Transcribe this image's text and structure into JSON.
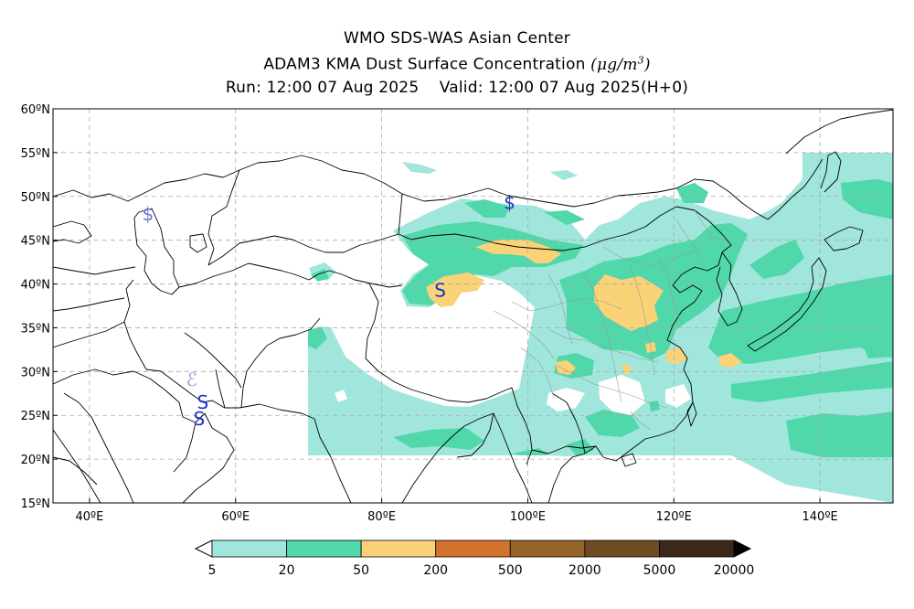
{
  "titles": {
    "line1": "WMO SDS-WAS Asian Center",
    "line2": "ADAM3 KMA Dust Surface Concentration",
    "unit_mu": "μ",
    "unit_g": "g/m",
    "unit_exp": "3",
    "line3": "Run: 12:00 07 Aug 2025    Valid: 12:00 07 Aug 2025(H+0)"
  },
  "map": {
    "lon_range": [
      35,
      150
    ],
    "lat_range": [
      15,
      60
    ],
    "lon_ticks": [
      {
        "value": 40,
        "label": "40ºE"
      },
      {
        "value": 60,
        "label": "60ºE"
      },
      {
        "value": 80,
        "label": "80ºE"
      },
      {
        "value": 100,
        "label": "100ºE"
      },
      {
        "value": 120,
        "label": "120ºE"
      },
      {
        "value": 140,
        "label": "140ºE"
      }
    ],
    "lat_ticks": [
      {
        "value": 60,
        "label": "60ºN"
      },
      {
        "value": 55,
        "label": "55ºN"
      },
      {
        "value": 50,
        "label": "50ºN"
      },
      {
        "value": 45,
        "label": "45ºN"
      },
      {
        "value": 40,
        "label": "40ºN"
      },
      {
        "value": 35,
        "label": "35ºN"
      },
      {
        "value": 30,
        "label": "30ºN"
      },
      {
        "value": 25,
        "label": "25ºN"
      },
      {
        "value": 20,
        "label": "20ºN"
      },
      {
        "value": 15,
        "label": "15ºN"
      }
    ],
    "grid": true,
    "colors": {
      "c5_20": "#a0e6dc",
      "c20_50": "#50d7aa",
      "c50_200": "#fad278",
      "c200_500": "#d2732d",
      "c500_2000": "#966428",
      "c2000_5000": "#6e4b23",
      "c5000_20000": "#3c2819",
      "coast": "#000000",
      "province": "#999999"
    },
    "symbols": [
      {
        "text": "$",
        "lon": 48,
        "lat": 48,
        "color": "#6677cc"
      },
      {
        "text": "$",
        "lon": 97.5,
        "lat": 49.3,
        "color": "#2233bb"
      },
      {
        "text": "S",
        "lon": 88,
        "lat": 39.3,
        "color": "#1a33cc"
      },
      {
        "text": "ℰ",
        "lon": 54,
        "lat": 29.1,
        "color": "#8899dd"
      },
      {
        "text": "S",
        "lon": 55.5,
        "lat": 26.5,
        "color": "#1a33cc"
      },
      {
        "text": "S",
        "lon": 55.0,
        "lat": 24.6,
        "color": "#1a33cc"
      }
    ]
  },
  "colorbar": {
    "labels": [
      "5",
      "20",
      "50",
      "200",
      "500",
      "2000",
      "5000",
      "20000"
    ],
    "colors": [
      "#a0e6dc",
      "#50d7aa",
      "#fad278",
      "#d2732d",
      "#966428",
      "#6e4b23",
      "#3c2819"
    ],
    "under_color": "#ffffff",
    "over_color": "#000000"
  }
}
